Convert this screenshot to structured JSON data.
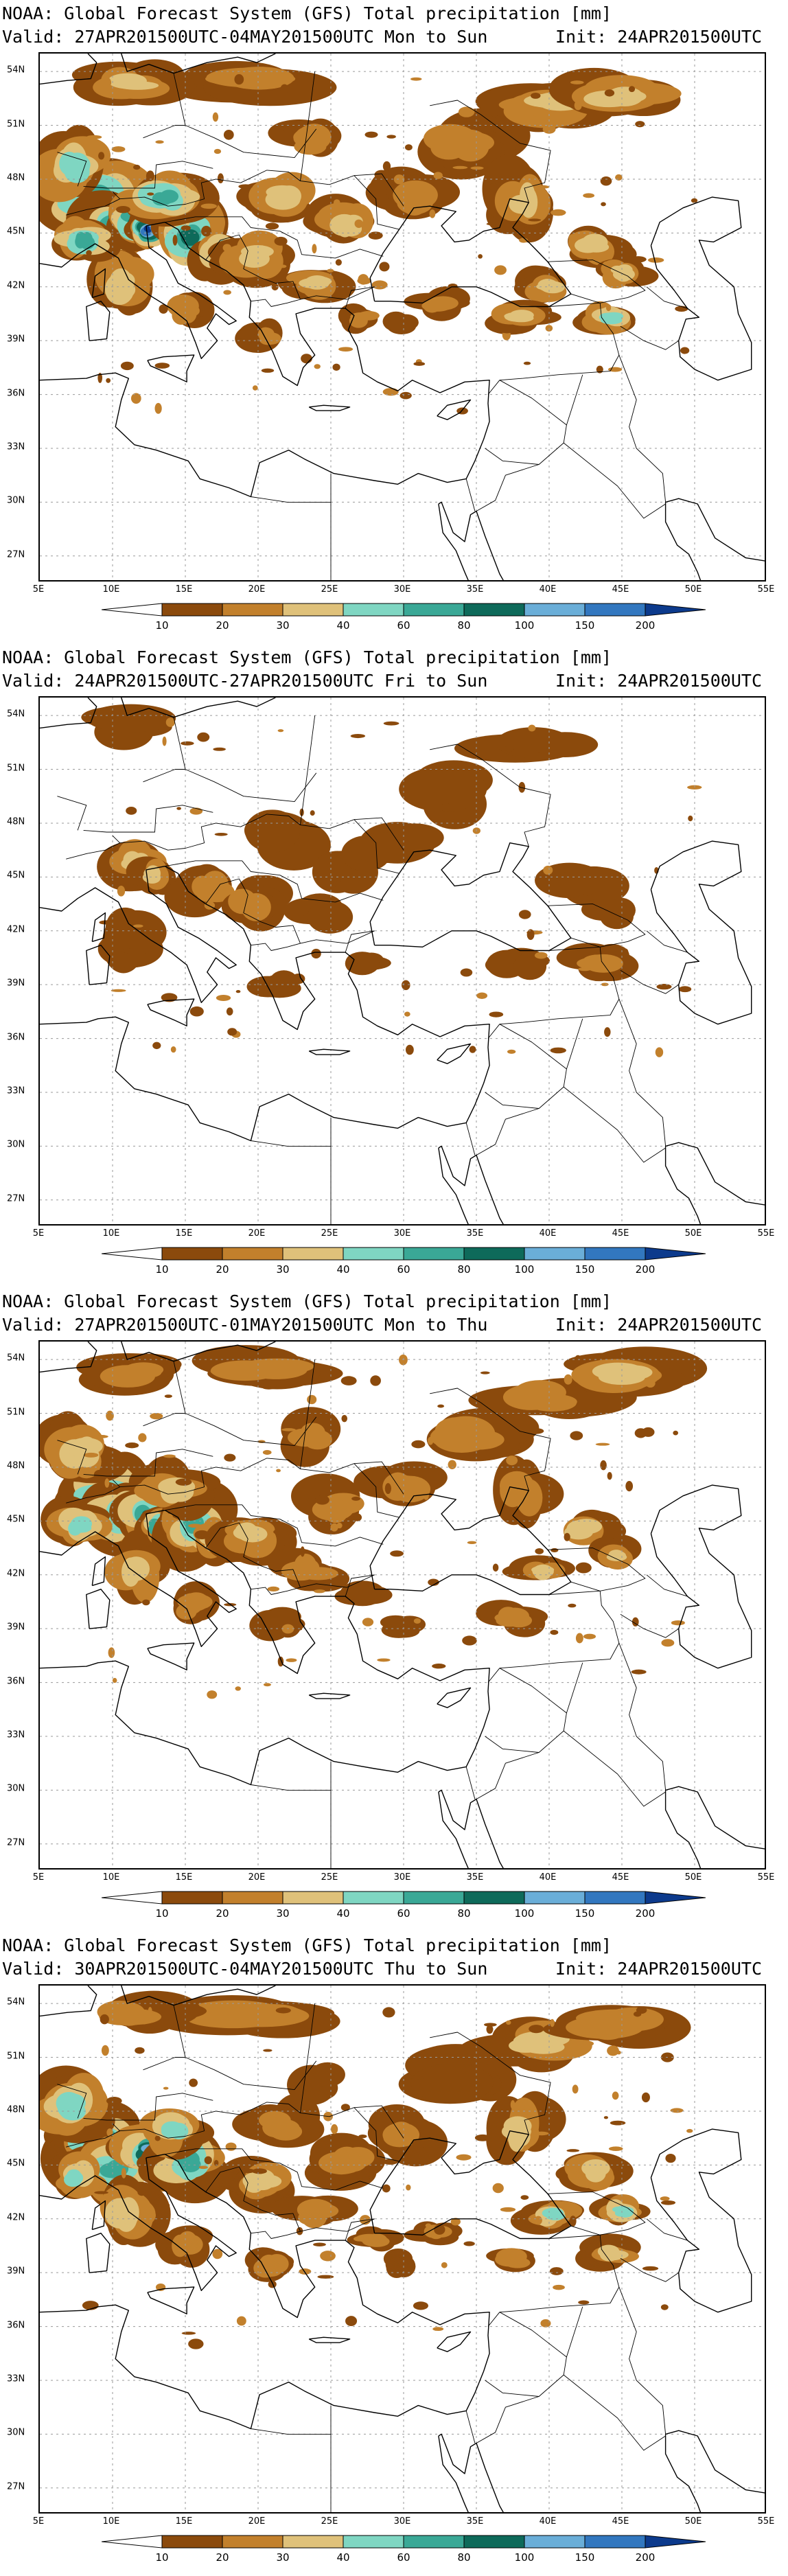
{
  "panels": [
    {
      "title": "NOAA: Global Forecast System (GFS) Total precipitation [mm]",
      "valid": "Valid: 27APR201500UTC-04MAY201500UTC Mon to Sun",
      "init": "Init: 24APR201500UTC",
      "intensity": 0.95
    },
    {
      "title": "NOAA: Global Forecast System (GFS) Total precipitation [mm]",
      "valid": "Valid: 24APR201500UTC-27APR201500UTC Fri to Sun",
      "init": "Init: 24APR201500UTC",
      "intensity": 0.35
    },
    {
      "title": "NOAA: Global Forecast System (GFS) Total precipitation [mm]",
      "valid": "Valid: 27APR201500UTC-01MAY201500UTC Mon to Thu",
      "init": "Init: 24APR201500UTC",
      "intensity": 0.75
    },
    {
      "title": "NOAA: Global Forecast System (GFS) Total precipitation [mm]",
      "valid": "Valid: 30APR201500UTC-04MAY201500UTC Thu to Sun",
      "init": "Init: 24APR201500UTC",
      "intensity": 0.8
    }
  ],
  "map": {
    "lat_labels": [
      "54N",
      "51N",
      "48N",
      "45N",
      "42N",
      "39N",
      "36N",
      "33N",
      "30N",
      "27N"
    ],
    "lon_labels": [
      "5E",
      "10E",
      "15E",
      "20E",
      "25E",
      "30E",
      "35E",
      "40E",
      "45E",
      "50E",
      "55E"
    ]
  },
  "colorbar": {
    "levels": [
      "10",
      "20",
      "30",
      "40",
      "60",
      "80",
      "100",
      "150",
      "200"
    ],
    "colors": [
      "#ffffff",
      "#8b4a0c",
      "#c2802c",
      "#dfc17a",
      "#7fd6c2",
      "#3aa896",
      "#0e6a5a",
      "#6aaed8",
      "#3277bf",
      "#0c3a8c"
    ]
  }
}
